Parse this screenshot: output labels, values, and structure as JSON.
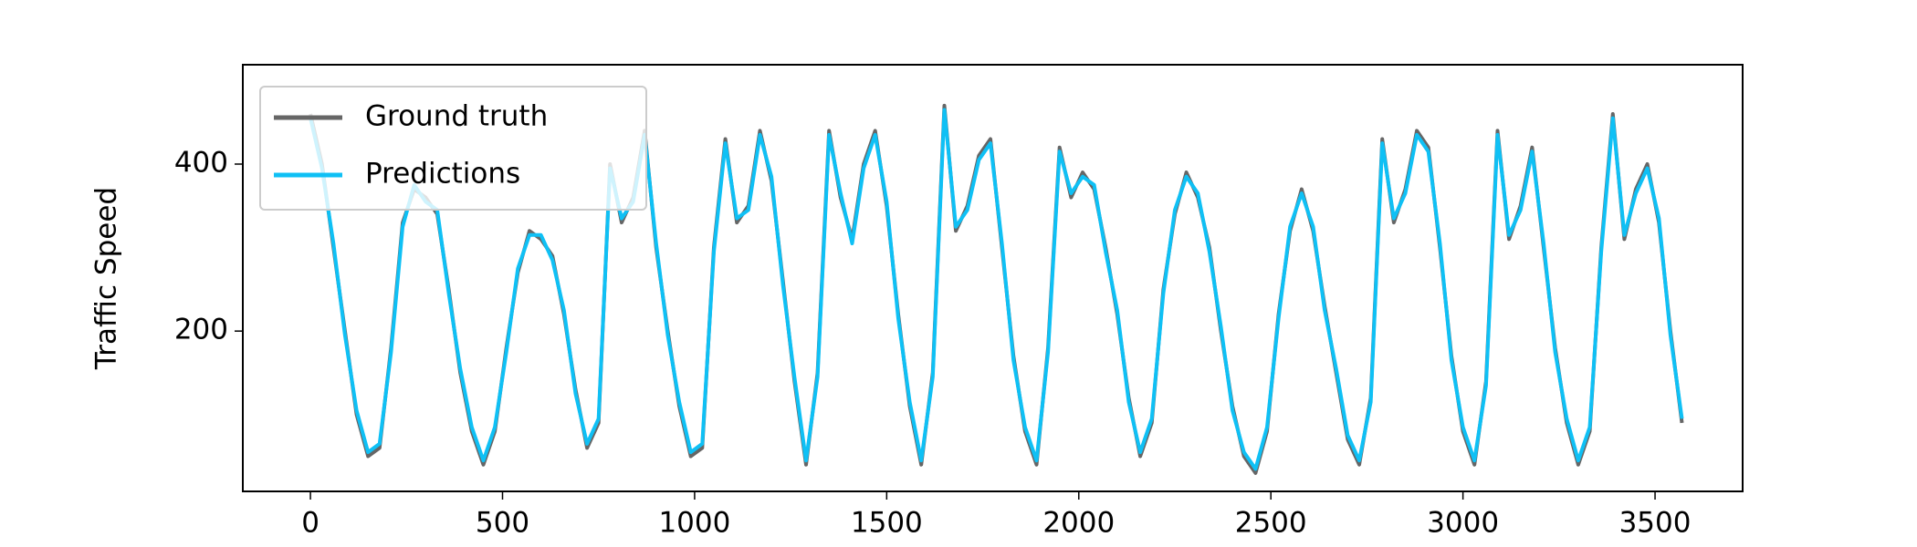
{
  "chart_data": {
    "type": "line",
    "ylabel": "Traffic Speed",
    "x": [
      0,
      30,
      60,
      90,
      120,
      150,
      180,
      210,
      240,
      270,
      300,
      330,
      360,
      390,
      420,
      450,
      480,
      510,
      540,
      570,
      600,
      630,
      660,
      690,
      720,
      750,
      780,
      810,
      840,
      870,
      900,
      930,
      960,
      990,
      1020,
      1050,
      1080,
      1110,
      1140,
      1170,
      1200,
      1230,
      1260,
      1290,
      1320,
      1350,
      1380,
      1410,
      1440,
      1470,
      1500,
      1530,
      1560,
      1590,
      1620,
      1650,
      1680,
      1710,
      1740,
      1770,
      1800,
      1830,
      1860,
      1890,
      1920,
      1950,
      1980,
      2010,
      2040,
      2070,
      2100,
      2130,
      2160,
      2190,
      2220,
      2250,
      2280,
      2310,
      2340,
      2370,
      2400,
      2430,
      2460,
      2490,
      2520,
      2550,
      2580,
      2610,
      2640,
      2670,
      2700,
      2730,
      2760,
      2790,
      2820,
      2850,
      2880,
      2910,
      2940,
      2970,
      3000,
      3030,
      3060,
      3090,
      3120,
      3150,
      3180,
      3210,
      3240,
      3270,
      3300,
      3330,
      3360,
      3390,
      3420,
      3450,
      3480,
      3510,
      3540,
      3570
    ],
    "series": [
      {
        "name": "Ground truth",
        "color": "#666666",
        "values": [
          460,
          400,
          300,
          200,
          100,
          50,
          60,
          180,
          330,
          370,
          360,
          340,
          250,
          150,
          80,
          40,
          80,
          180,
          270,
          320,
          310,
          290,
          220,
          130,
          60,
          90,
          400,
          330,
          360,
          440,
          300,
          200,
          110,
          50,
          60,
          300,
          430,
          330,
          350,
          440,
          380,
          260,
          140,
          40,
          150,
          440,
          360,
          310,
          400,
          440,
          350,
          220,
          110,
          40,
          150,
          470,
          320,
          350,
          410,
          430,
          300,
          170,
          80,
          40,
          180,
          420,
          360,
          390,
          370,
          300,
          220,
          120,
          50,
          90,
          250,
          340,
          390,
          360,
          300,
          200,
          110,
          50,
          30,
          80,
          220,
          320,
          370,
          320,
          230,
          150,
          70,
          40,
          120,
          430,
          330,
          370,
          440,
          420,
          300,
          170,
          80,
          40,
          140,
          440,
          310,
          350,
          420,
          300,
          180,
          90,
          40,
          80,
          300,
          460,
          310,
          370,
          400,
          330,
          200,
          90
        ]
      },
      {
        "name": "Predictions",
        "color": "#0fc0f5",
        "values": [
          455,
          395,
          305,
          195,
          105,
          55,
          65,
          175,
          325,
          375,
          355,
          345,
          245,
          155,
          85,
          45,
          85,
          175,
          275,
          315,
          315,
          285,
          225,
          125,
          65,
          95,
          395,
          335,
          355,
          435,
          305,
          195,
          115,
          55,
          65,
          295,
          425,
          335,
          345,
          435,
          385,
          255,
          145,
          45,
          145,
          435,
          365,
          305,
          395,
          435,
          355,
          215,
          115,
          45,
          145,
          465,
          325,
          345,
          405,
          425,
          305,
          165,
          85,
          45,
          175,
          415,
          365,
          385,
          375,
          295,
          225,
          115,
          55,
          95,
          245,
          345,
          385,
          365,
          295,
          205,
          105,
          55,
          35,
          85,
          215,
          325,
          365,
          325,
          225,
          155,
          75,
          45,
          115,
          425,
          335,
          365,
          435,
          415,
          305,
          165,
          85,
          45,
          135,
          435,
          315,
          345,
          415,
          305,
          175,
          95,
          45,
          85,
          295,
          455,
          315,
          365,
          395,
          335,
          195,
          95
        ]
      }
    ],
    "xlim": [
      -176,
      3728
    ],
    "ylim": [
      8,
      519
    ],
    "xticks": [
      0,
      500,
      1000,
      1500,
      2000,
      2500,
      3000,
      3500
    ],
    "yticks": [
      200,
      400
    ],
    "legend": "upper left"
  }
}
